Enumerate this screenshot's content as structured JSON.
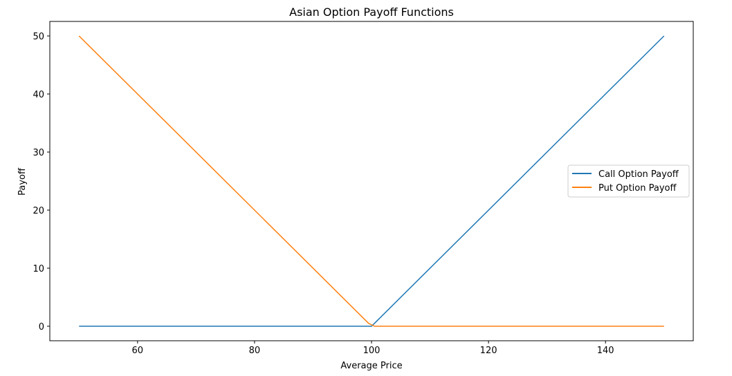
{
  "chart_data": {
    "type": "line",
    "title": "Asian Option Payoff Functions",
    "xlabel": "Average Price",
    "ylabel": "Payoff",
    "xlim": [
      45,
      155
    ],
    "ylim": [
      -2.5,
      52.5
    ],
    "xticks": [
      60,
      80,
      100,
      120,
      140
    ],
    "yticks": [
      0,
      10,
      20,
      30,
      40,
      50
    ],
    "grid": false,
    "legend_position": "center-right",
    "series": [
      {
        "name": "Call Option Payoff",
        "color": "#1f77b4",
        "x": [
          50,
          100,
          100.5,
          150
        ],
        "y": [
          0,
          0,
          0.5,
          50
        ]
      },
      {
        "name": "Put Option Payoff",
        "color": "#ff7f0e",
        "x": [
          50,
          99.5,
          100.5,
          150
        ],
        "y": [
          50,
          0.5,
          0,
          0
        ]
      }
    ]
  }
}
